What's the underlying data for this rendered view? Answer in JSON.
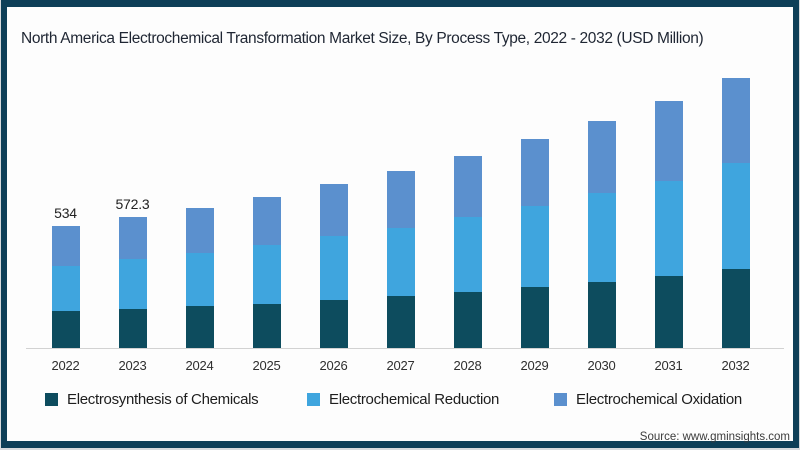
{
  "title": "North America Electrochemical Transformation Market Size, By Process Type, 2022 - 2032 (USD Million)",
  "source": "Source: www.gminsights.com",
  "colors": {
    "frame_border": "#0e3f58",
    "electrosynthesis": "#0d4c5e",
    "reduction": "#3fa5de",
    "oxidation": "#5b90ce",
    "axis_line": "#d2d2d2"
  },
  "legend": [
    {
      "label": "Electrosynthesis of Chemicals",
      "color": "#0d4c5e"
    },
    {
      "label": "Electrochemical Reduction",
      "color": "#3fa5de"
    },
    {
      "label": "Electrochemical Oxidation",
      "color": "#5b90ce"
    }
  ],
  "chart_data": {
    "type": "bar",
    "stacked": true,
    "unit": "USD Million",
    "title": "North America Electrochemical Transformation Market Size, By Process Type, 2022 - 2032 (USD Million)",
    "categories": [
      "2022",
      "2023",
      "2024",
      "2025",
      "2026",
      "2027",
      "2028",
      "2029",
      "2030",
      "2031",
      "2032"
    ],
    "series": [
      {
        "name": "Electrosynthesis of Chemicals",
        "color": "#0d4c5e",
        "values": [
          162,
          172.3,
          184,
          193,
          210,
          228,
          245,
          267,
          289,
          315,
          346
        ]
      },
      {
        "name": "Electrochemical Reduction",
        "color": "#3fa5de",
        "values": [
          197,
          216,
          231,
          256,
          280,
          298,
          328,
          355,
          390,
          416,
          464
        ]
      },
      {
        "name": "Electrochemical Oxidation",
        "color": "#5b90ce",
        "values": [
          175,
          184,
          197,
          212,
          228,
          250,
          268,
          293,
          315,
          350,
          372
        ]
      }
    ],
    "totals": [
      534,
      572.3,
      612,
      661,
      718,
      776,
      841,
      915,
      994,
      1081,
      1182
    ],
    "data_labels": [
      "534",
      "572.3",
      "",
      "",
      "",
      "",
      "",
      "",
      "",
      "",
      ""
    ],
    "xlabel": "",
    "ylabel": "",
    "y_axis_visible": false,
    "gridlines": false,
    "legend_position": "bottom",
    "ylim": [
      0,
      1250
    ]
  }
}
